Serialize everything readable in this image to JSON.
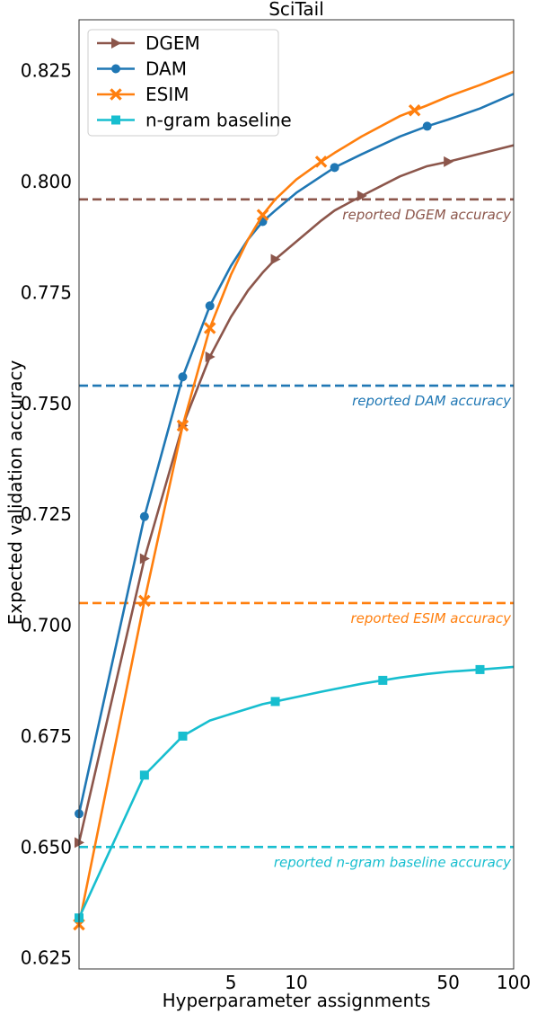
{
  "chart_data": {
    "type": "line",
    "title": "SciTail",
    "xlabel": "Hyperparameter assignments",
    "ylabel": "Expected validation accuracy",
    "x_scale": "log",
    "xlim": [
      1,
      100
    ],
    "ylim": [
      0.6225,
      0.8365
    ],
    "x_ticks": [
      5,
      10,
      50,
      100
    ],
    "x_tick_labels": [
      "5",
      "10",
      "50",
      "100"
    ],
    "y_ticks": [
      0.625,
      0.65,
      0.675,
      0.7,
      0.725,
      0.75,
      0.775,
      0.8,
      0.825
    ],
    "y_tick_labels": [
      "0.625",
      "0.650",
      "0.675",
      "0.700",
      "0.725",
      "0.750",
      "0.775",
      "0.800",
      "0.825"
    ],
    "grid": false,
    "legend_position": "top-left",
    "series": [
      {
        "name": "DGEM",
        "color": "#8c564b",
        "marker": "triangle-right",
        "x": [
          1,
          2,
          3,
          4,
          5,
          6,
          7,
          8,
          10,
          13,
          15,
          20,
          30,
          40,
          50,
          70,
          100
        ],
        "y": [
          0.651,
          0.715,
          0.745,
          0.7605,
          0.7695,
          0.7755,
          0.7795,
          0.7825,
          0.7865,
          0.7912,
          0.7935,
          0.7968,
          0.8012,
          0.8035,
          0.8045,
          0.8063,
          0.8082
        ],
        "marker_x": [
          1,
          2,
          3,
          4,
          8,
          20,
          50
        ]
      },
      {
        "name": "DAM",
        "color": "#1f77b4",
        "marker": "circle",
        "x": [
          1,
          2,
          3,
          4,
          5,
          6,
          7,
          8,
          10,
          13,
          15,
          20,
          30,
          40,
          50,
          70,
          100
        ],
        "y": [
          0.6575,
          0.7245,
          0.756,
          0.772,
          0.781,
          0.787,
          0.791,
          0.7935,
          0.7975,
          0.8012,
          0.8032,
          0.8062,
          0.8102,
          0.8125,
          0.814,
          0.8165,
          0.8198
        ],
        "marker_x": [
          1,
          2,
          3,
          4,
          7,
          15,
          40
        ]
      },
      {
        "name": "ESIM",
        "color": "#ff7f0e",
        "marker": "x",
        "x": [
          1,
          2,
          3,
          4,
          5,
          6,
          7,
          8,
          10,
          13,
          15,
          20,
          30,
          40,
          50,
          70,
          100
        ],
        "y": [
          0.6325,
          0.7055,
          0.745,
          0.767,
          0.779,
          0.787,
          0.7925,
          0.796,
          0.8005,
          0.8045,
          0.8065,
          0.8102,
          0.8148,
          0.8172,
          0.8192,
          0.8218,
          0.8248
        ],
        "marker_x": [
          1,
          2,
          3,
          4,
          7,
          13,
          35
        ]
      },
      {
        "name": "n-gram baseline",
        "color": "#17becf",
        "marker": "square",
        "x": [
          1,
          2,
          3,
          4,
          5,
          6,
          7,
          8,
          10,
          13,
          15,
          20,
          30,
          40,
          50,
          70,
          100
        ],
        "y": [
          0.634,
          0.6662,
          0.675,
          0.6785,
          0.68,
          0.6812,
          0.6822,
          0.6828,
          0.6838,
          0.685,
          0.6856,
          0.6868,
          0.6882,
          0.689,
          0.6895,
          0.69,
          0.6906
        ],
        "marker_x": [
          1,
          2,
          3,
          8,
          25,
          70
        ]
      }
    ],
    "reference_lines": [
      {
        "label": "reported DGEM accuracy",
        "y": 0.796,
        "color": "#8c564b"
      },
      {
        "label": "reported DAM accuracy",
        "y": 0.754,
        "color": "#1f77b4"
      },
      {
        "label": "reported ESIM accuracy",
        "y": 0.705,
        "color": "#ff7f0e"
      },
      {
        "label": "reported n-gram baseline accuracy",
        "y": 0.65,
        "color": "#17becf"
      }
    ]
  }
}
